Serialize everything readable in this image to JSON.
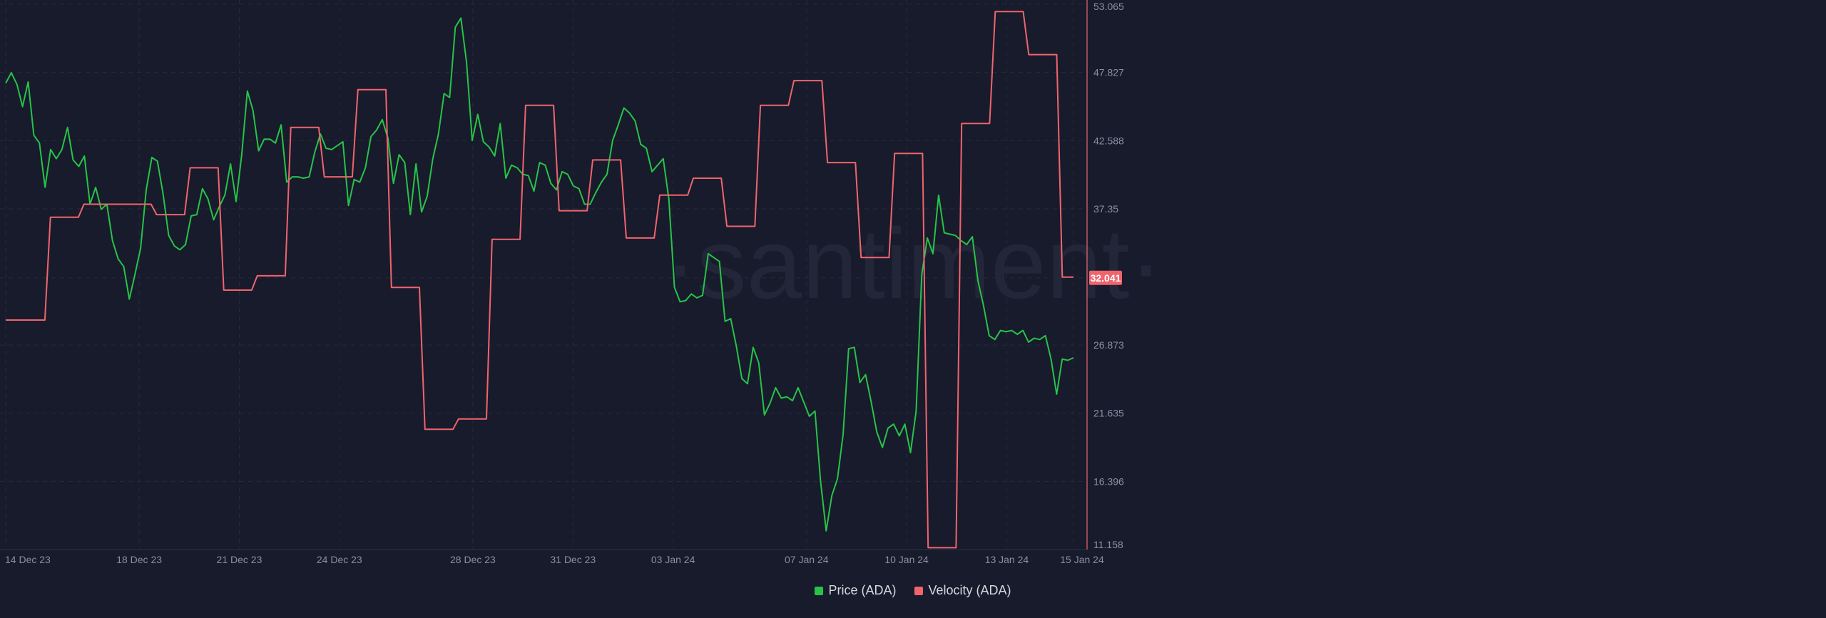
{
  "watermark": "·santiment·",
  "colors": {
    "background": "#181b2b",
    "grid": "#262a3c",
    "axis_text": "#8a8fa3",
    "price": "#27c349",
    "velocity": "#f0646e"
  },
  "legend": {
    "price_label": "Price (ADA)",
    "velocity_label": "Velocity (ADA)"
  },
  "chart_data": {
    "type": "line",
    "x_ticks": [
      "14 Dec 23",
      "18 Dec 23",
      "21 Dec 23",
      "24 Dec 23",
      "28 Dec 23",
      "31 Dec 23",
      "03 Jan 24",
      "07 Jan 24",
      "10 Jan 24",
      "13 Jan 24",
      "15 Jan 24"
    ],
    "x_range": [
      "2023-12-14",
      "2024-01-15"
    ],
    "y_axis_right": {
      "ticks": [
        "53.065",
        "47.827",
        "42.588",
        "37.35",
        "32.041",
        "26.873",
        "21.635",
        "16.396",
        "11.158"
      ],
      "range": [
        11.158,
        53.065
      ]
    },
    "current_value_label": "32.041",
    "series": [
      {
        "name": "Price (ADA)",
        "values": [
          47,
          47.8,
          46.9,
          45.2,
          47.1,
          43,
          42.4,
          39,
          41.9,
          41.2,
          41.9,
          43.6,
          41.1,
          40.6,
          41.4,
          37.7,
          39,
          37.3,
          37.7,
          34.9,
          33.5,
          32.9,
          30.4,
          32.3,
          34.3,
          38.8,
          41.3,
          41,
          38.5,
          35.3,
          34.5,
          34.2,
          34.6,
          36.8,
          36.9,
          38.9,
          38.1,
          36.5,
          37.5,
          38.4,
          40.8,
          37.9,
          41.5,
          46.4,
          44.9,
          41.8,
          42.7,
          42.7,
          42.4,
          43.8,
          39.4,
          39.8,
          39.8,
          39.7,
          39.8,
          41.7,
          43.1,
          42,
          41.9,
          42.2,
          42.5,
          37.6,
          39.6,
          39.4,
          40.5,
          42.9,
          43.4,
          44.2,
          42.8,
          39.3,
          41.5,
          40.9,
          36.9,
          40.8,
          37.1,
          38.3,
          41.2,
          43.1,
          46.2,
          45.9,
          51.3,
          52,
          48.6,
          42.6,
          44.6,
          42.5,
          42.1,
          41.4,
          43.9,
          39.7,
          40.7,
          40.5,
          40,
          39.9,
          38.7,
          40.9,
          40.7,
          39.3,
          38.8,
          40.2,
          40,
          39.1,
          38.9,
          37.7,
          37.7,
          38.6,
          39.4,
          40,
          42.6,
          43.8,
          45.1,
          44.7,
          44.1,
          42.3,
          42,
          40.2,
          40.7,
          41.2,
          38.1,
          31.3,
          30.2,
          30.3,
          30.8,
          30.5,
          30.7,
          33.9,
          33.6,
          33.3,
          28.7,
          28.9,
          26.8,
          24.3,
          23.9,
          26.7,
          25.5,
          21.5,
          22.4,
          23.6,
          22.8,
          22.9,
          22.6,
          23.6,
          22.5,
          21.4,
          21.8,
          16.4,
          12.6,
          15.3,
          16.6,
          20,
          26.6,
          26.7,
          24,
          24.6,
          22.5,
          20.2,
          19,
          20.5,
          20.8,
          19.9,
          20.8,
          18.6,
          21.8,
          32.3,
          35.1,
          33.9,
          38.4,
          35.5,
          35.4,
          35.3,
          34.9,
          34.6,
          35.2,
          31.8,
          29.9,
          27.6,
          27.3,
          28,
          27.9,
          28,
          27.7,
          28,
          27.1,
          27.4,
          27.3,
          27.6,
          25.8,
          23.1,
          25.8,
          25.7,
          25.9
        ]
      },
      {
        "name": "Velocity (ADA)",
        "values": [
          28.8,
          28.8,
          28.8,
          28.8,
          28.8,
          28.8,
          28.8,
          28.8,
          36.7,
          36.7,
          36.7,
          36.7,
          36.7,
          36.7,
          37.7,
          37.7,
          37.7,
          37.7,
          37.7,
          37.7,
          37.7,
          37.7,
          37.7,
          37.7,
          37.7,
          37.7,
          37.7,
          36.9,
          36.9,
          36.9,
          36.9,
          36.9,
          36.9,
          40.5,
          40.5,
          40.5,
          40.5,
          40.5,
          40.5,
          31.1,
          31.1,
          31.1,
          31.1,
          31.1,
          31.1,
          32.2,
          32.2,
          32.2,
          32.2,
          32.2,
          32.2,
          43.6,
          43.6,
          43.6,
          43.6,
          43.6,
          43.6,
          39.8,
          39.8,
          39.8,
          39.8,
          39.8,
          39.8,
          46.5,
          46.5,
          46.5,
          46.5,
          46.5,
          46.5,
          31.3,
          31.3,
          31.3,
          31.3,
          31.3,
          31.3,
          20.4,
          20.4,
          20.4,
          20.4,
          20.4,
          20.4,
          21.2,
          21.2,
          21.2,
          21.2,
          21.2,
          21.2,
          35,
          35,
          35,
          35,
          35,
          35,
          45.3,
          45.3,
          45.3,
          45.3,
          45.3,
          45.3,
          37.2,
          37.2,
          37.2,
          37.2,
          37.2,
          37.2,
          41.1,
          41.1,
          41.1,
          41.1,
          41.1,
          41.1,
          35.1,
          35.1,
          35.1,
          35.1,
          35.1,
          35.1,
          38.4,
          38.4,
          38.4,
          38.4,
          38.4,
          38.4,
          39.7,
          39.7,
          39.7,
          39.7,
          39.7,
          39.7,
          36,
          36,
          36,
          36,
          36,
          36,
          45.3,
          45.3,
          45.3,
          45.3,
          45.3,
          45.3,
          47.2,
          47.2,
          47.2,
          47.2,
          47.2,
          47.2,
          40.9,
          40.9,
          40.9,
          40.9,
          40.9,
          40.9,
          33.6,
          33.6,
          33.6,
          33.6,
          33.6,
          33.6,
          41.6,
          41.6,
          41.6,
          41.6,
          41.6,
          41.6,
          11.3,
          11.3,
          11.3,
          11.3,
          11.3,
          11.3,
          43.9,
          43.9,
          43.9,
          43.9,
          43.9,
          43.9,
          52.5,
          52.5,
          52.5,
          52.5,
          52.5,
          52.5,
          49.2,
          49.2,
          49.2,
          49.2,
          49.2,
          49.2,
          32.1,
          32.1,
          32.1
        ]
      }
    ],
    "grid": true,
    "legend_position": "bottom-center"
  }
}
